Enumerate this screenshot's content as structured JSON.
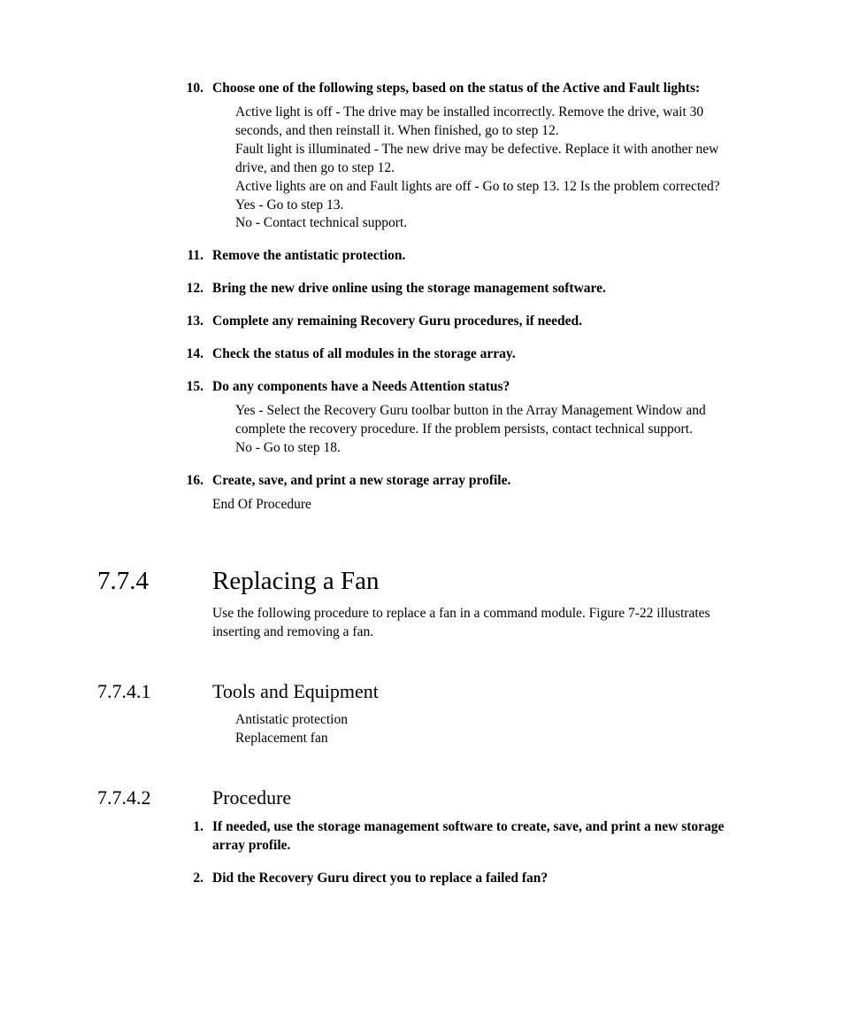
{
  "font": {
    "serif_family": "Palatino Linotype",
    "body_size_pt": 11.5,
    "h1_size_pt": 22,
    "h2_size_pt": 16
  },
  "colors": {
    "text": "#000000",
    "background": "#ffffff"
  },
  "list1": [
    {
      "num": "10.",
      "head": "Choose one of the following steps, based on the status of the Active and Fault lights:",
      "details": [
        "Active light is off - The drive may be installed incorrectly. Remove the drive, wait 30 seconds, and then reinstall it. When finished, go to step 12.",
        "Fault light is illuminated - The new drive may be defective. Replace it with another new drive, and then go to step 12.",
        "Active lights are on and Fault lights are off - Go to step 13. 12 Is the problem corrected?",
        "Yes - Go to step 13.",
        "No - Contact technical support."
      ]
    },
    {
      "num": "11.",
      "head": "Remove the antistatic protection."
    },
    {
      "num": "12.",
      "head": "Bring the new drive online using the storage management software."
    },
    {
      "num": "13.",
      "head": "Complete any remaining Recovery Guru procedures, if needed."
    },
    {
      "num": "14.",
      "head": "Check the status of all modules in the storage array."
    },
    {
      "num": "15.",
      "head": "Do any components have a Needs Attention status?",
      "details": [
        "Yes - Select the Recovery Guru toolbar button in the Array Management Window and complete the recovery procedure. If the problem persists, contact technical support.",
        "No - Go to step 18."
      ]
    },
    {
      "num": "16.",
      "head": "Create, save, and print a new storage array profile.",
      "details": [
        "End Of Procedure"
      ]
    }
  ],
  "section": {
    "num": "7.7.4",
    "title": "Replacing a Fan",
    "intro": "Use the following procedure to replace a fan in a command module. Figure 7-22 illustrates inserting and removing a fan."
  },
  "sub1": {
    "num": "7.7.4.1",
    "title": "Tools and Equipment",
    "lines": [
      "Antistatic protection",
      "Replacement fan"
    ]
  },
  "sub2": {
    "num": "7.7.4.2",
    "title": "Procedure",
    "items": [
      {
        "num": "1.",
        "head": "If needed, use the storage management software to create, save, and print a new storage array profile."
      },
      {
        "num": "2.",
        "head": "Did the Recovery Guru direct you to replace a failed fan?"
      }
    ]
  }
}
